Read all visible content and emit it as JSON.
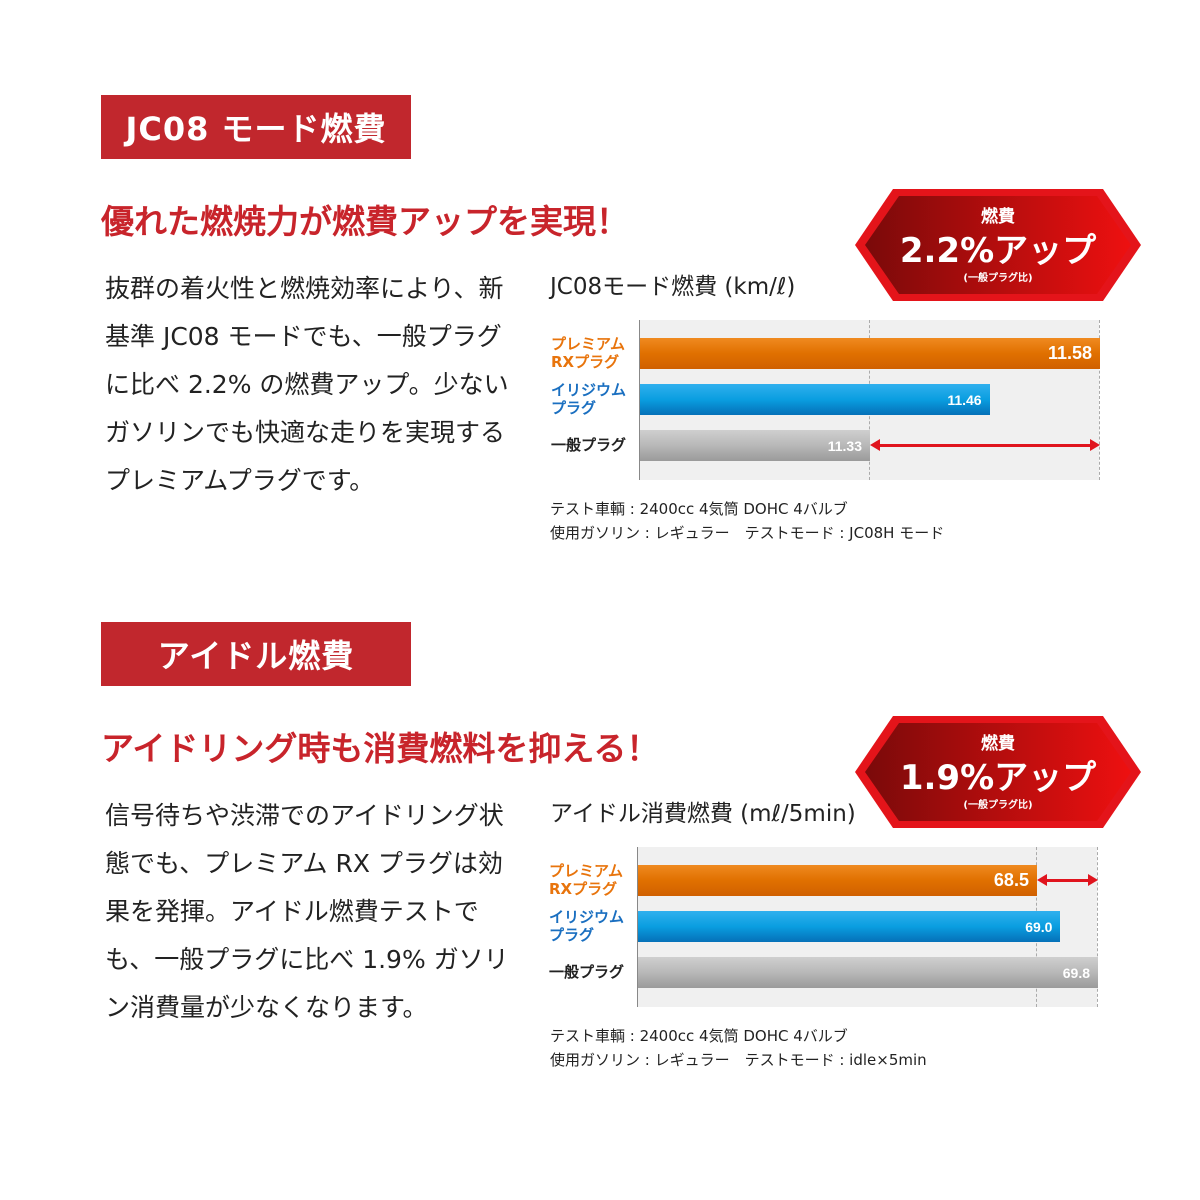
{
  "sections": [
    {
      "tag": "JC08 モード燃費",
      "headline": "優れた燃焼力が燃費アップを実現！",
      "body": "抜群の着火性と燃焼効率により、新基準 JC08 モードでも、一般プラグに比べ 2.2% の燃費アップ。少ないガソリンでも快適な走りを実現するプレミアムプラグです。",
      "badge": {
        "top": "燃費",
        "main": "2.2%アップ",
        "sub": "(一般プラグ比)"
      },
      "note1": "テスト車輌 : 2400cc 4気筒 DOHC 4バルブ",
      "note2": "使用ガソリン : レギュラー　テストモード : JC08H モード"
    },
    {
      "tag": "アイドル燃費",
      "headline": "アイドリング時も消費燃料を抑える！",
      "body": "信号待ちや渋滞でのアイドリング状態でも、プレミアム RX プラグは効果を発揮。アイドル燃費テストでも、一般プラグに比べ 1.9% ガソリン消費量が少なくなります。",
      "badge": {
        "top": "燃費",
        "main": "1.9%アップ",
        "sub": "(一般プラグ比)"
      },
      "note1": "テスト車輌 : 2400cc 4気筒 DOHC 4バルブ",
      "note2": "使用ガソリン : レギュラー　テストモード : idle×5min"
    }
  ],
  "colors": {
    "brand_red": "#c1272d",
    "premium": "#e8740c",
    "iridium": "#0a9ee0",
    "standard": "#b8b8b8",
    "arrow": "#e0141e"
  },
  "chart_data": [
    {
      "type": "bar",
      "orientation": "horizontal",
      "title": "JC08モード燃費 (km/ℓ)",
      "categories": [
        "プレミアム\nRXプラグ",
        "イリジウム\nプラグ",
        "一般プラグ"
      ],
      "values": [
        11.58,
        11.46,
        11.33
      ],
      "value_labels": [
        "11.58",
        "11.46",
        "11.33"
      ],
      "xlim": [
        11.08,
        11.58
      ],
      "grid": false,
      "category_colors": [
        "#e8740c",
        "#1a6fc0",
        "#222222"
      ]
    },
    {
      "type": "bar",
      "orientation": "horizontal",
      "title": "アイドル消費燃費 (mℓ/5min)",
      "categories": [
        "プレミアム\nRXプラグ",
        "イリジウム\nプラグ",
        "一般プラグ"
      ],
      "values": [
        68.5,
        69.0,
        69.8
      ],
      "value_labels": [
        "68.5",
        "69.0",
        "69.8"
      ],
      "xlim": [
        60,
        69.8
      ],
      "grid": false,
      "category_colors": [
        "#e8740c",
        "#1a6fc0",
        "#222222"
      ]
    }
  ]
}
